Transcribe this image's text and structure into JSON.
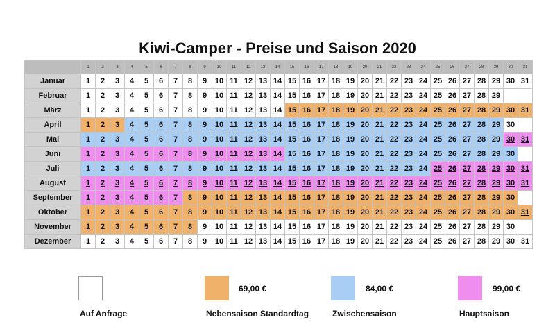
{
  "title": "Kiwi-Camper - Preise und Saison 2020",
  "colors": {
    "auf_anfrage": "#ffffff",
    "nebensaison": "#f0b26a",
    "zwischensaison": "#a8cef5",
    "hauptsaison": "#f08ef0"
  },
  "day_headers": [
    "1",
    "2",
    "3",
    "4",
    "5",
    "6",
    "7",
    "8",
    "9",
    "10",
    "11",
    "12",
    "13",
    "14",
    "15",
    "16",
    "17",
    "18",
    "19",
    "20",
    "21",
    "22",
    "23",
    "24",
    "25",
    "26",
    "27",
    "28",
    "29",
    "30",
    "31"
  ],
  "months": [
    {
      "name": "Januar",
      "days": 31,
      "ranges": [
        [
          1,
          31,
          0
        ]
      ],
      "underline": []
    },
    {
      "name": "Februar",
      "days": 29,
      "ranges": [
        [
          1,
          29,
          0
        ]
      ],
      "underline": []
    },
    {
      "name": "März",
      "days": 31,
      "ranges": [
        [
          1,
          14,
          0
        ],
        [
          15,
          31,
          1
        ]
      ],
      "underline": []
    },
    {
      "name": "April",
      "days": 30,
      "ranges": [
        [
          1,
          3,
          1
        ],
        [
          4,
          29,
          2
        ],
        [
          30,
          30,
          0
        ]
      ],
      "underline": [
        [
          4,
          19
        ]
      ]
    },
    {
      "name": "Mai",
      "days": 31,
      "ranges": [
        [
          1,
          29,
          2
        ],
        [
          30,
          31,
          3
        ]
      ],
      "underline": [
        [
          30,
          31
        ]
      ]
    },
    {
      "name": "Juni",
      "days": 30,
      "ranges": [
        [
          1,
          14,
          3
        ],
        [
          15,
          30,
          2
        ]
      ],
      "underline": [
        [
          1,
          14
        ]
      ]
    },
    {
      "name": "Juli",
      "days": 31,
      "ranges": [
        [
          1,
          24,
          2
        ],
        [
          25,
          31,
          3
        ]
      ],
      "underline": [
        [
          25,
          31
        ]
      ]
    },
    {
      "name": "August",
      "days": 31,
      "ranges": [
        [
          1,
          31,
          3
        ]
      ],
      "underline": [
        [
          1,
          31
        ]
      ]
    },
    {
      "name": "September",
      "days": 30,
      "ranges": [
        [
          1,
          7,
          3
        ],
        [
          8,
          30,
          1
        ]
      ],
      "underline": [
        [
          1,
          7
        ]
      ]
    },
    {
      "name": "Oktober",
      "days": 31,
      "ranges": [
        [
          1,
          31,
          1
        ]
      ],
      "underline": [
        [
          31,
          31
        ]
      ]
    },
    {
      "name": "November",
      "days": 30,
      "ranges": [
        [
          1,
          8,
          1
        ],
        [
          9,
          30,
          0
        ]
      ],
      "underline": [
        [
          1,
          8
        ]
      ]
    },
    {
      "name": "Dezember",
      "days": 31,
      "ranges": [
        [
          1,
          31,
          0
        ]
      ],
      "underline": []
    }
  ],
  "legend": [
    {
      "label": "Auf Anfrage",
      "price": "",
      "color": "#ffffff"
    },
    {
      "label": "Nebensaison Standardtag",
      "price": "69,00 €",
      "color": "#f0b26a"
    },
    {
      "label": "Zwischensaison",
      "price": "84,00 €",
      "color": "#a8cef5"
    },
    {
      "label": "Hauptsaison",
      "price": "99,00 €",
      "color": "#f08ef0"
    }
  ]
}
